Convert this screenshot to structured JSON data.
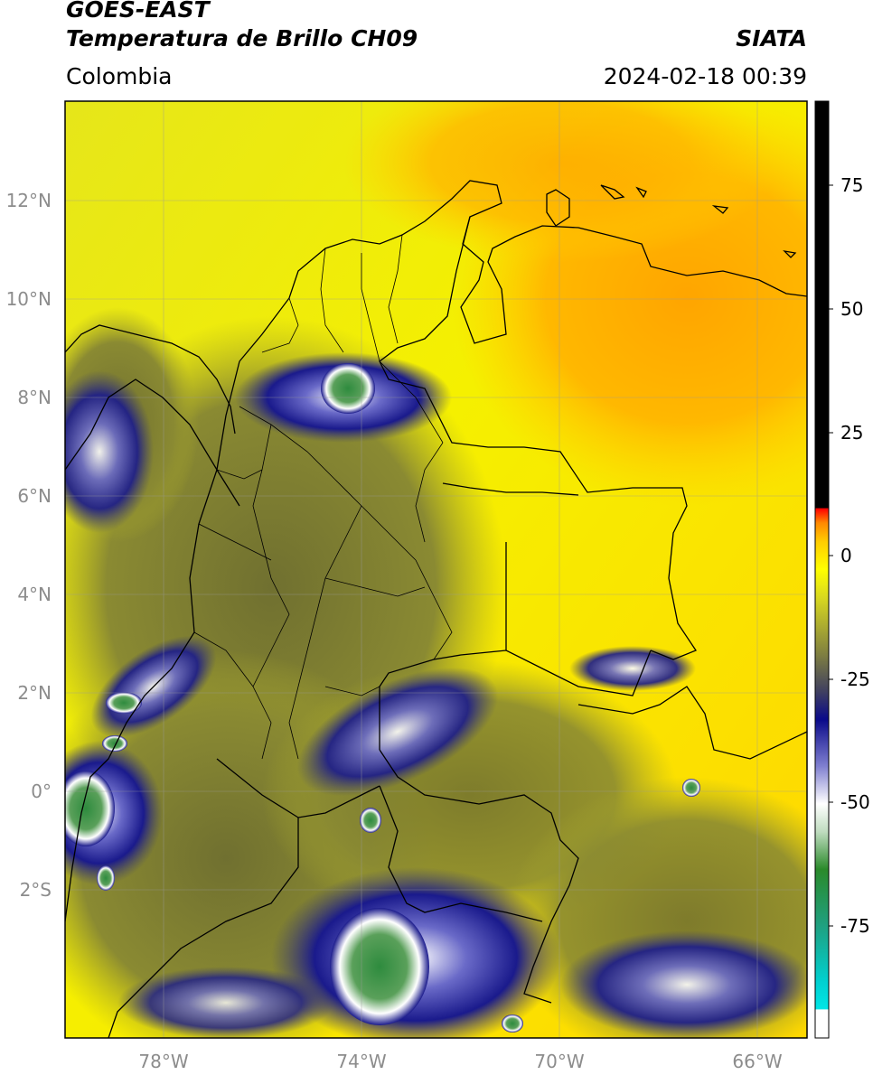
{
  "header": {
    "satellite": "GOES-EAST",
    "product": "Temperatura de Brillo CH09",
    "brand": "SIATA",
    "region": "Colombia",
    "datetime": "2024-02-18 00:39"
  },
  "map": {
    "lon_range": [
      -80,
      -65
    ],
    "lat_range": [
      -5,
      14
    ],
    "lon_ticks": [
      "78°W",
      "74°W",
      "70°W",
      "66°W"
    ],
    "lat_ticks": [
      "12°N",
      "10°N",
      "8°N",
      "6°N",
      "4°N",
      "2°N",
      "0°",
      "2°S"
    ],
    "gridlines": true,
    "background_color": "#e9e910",
    "warm_color": "#ffa500",
    "cloud_colors": [
      "#6b6b30",
      "#1a1a8c",
      "#ffffff",
      "#3a8a3a"
    ]
  },
  "colorbar": {
    "range": [
      -100,
      90
    ],
    "ticks": [
      "75",
      "50",
      "25",
      "0",
      "-25",
      "-50",
      "-75"
    ],
    "colors": [
      "#ffffff",
      "#00e0e0",
      "#228b22",
      "#ffffff",
      "#00008b",
      "#808040",
      "#ffff00",
      "#ff9900",
      "#ff0000",
      "#000000"
    ]
  }
}
